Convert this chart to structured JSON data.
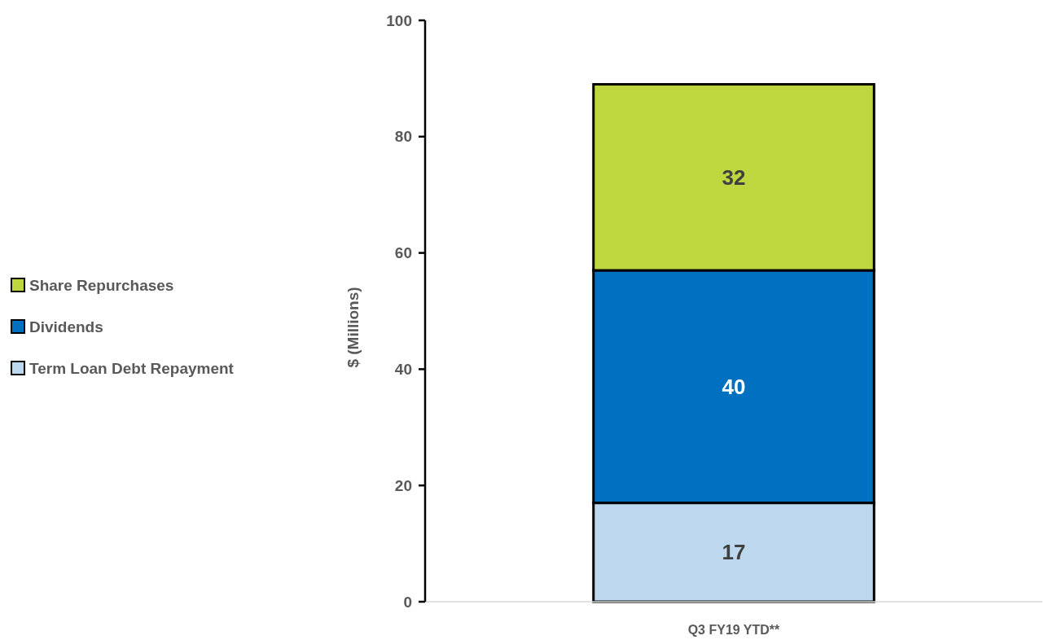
{
  "chart_data": {
    "type": "bar",
    "stacked": true,
    "categories": [
      "Q3 FY19 YTD**"
    ],
    "ylabel": "$ (Millions)",
    "ylim": [
      0,
      100
    ],
    "yticks": [
      0,
      20,
      40,
      60,
      80,
      100
    ],
    "legend": "left",
    "data_labels": true,
    "grid": false,
    "series": [
      {
        "name": "Term Loan Debt Repayment",
        "color": "#bdd7ee",
        "values": [
          17
        ]
      },
      {
        "name": "Dividends",
        "color": "#0070c0",
        "values": [
          40
        ]
      },
      {
        "name": "Share Repurchases",
        "color": "#bfd73f",
        "values": [
          32
        ]
      }
    ]
  }
}
